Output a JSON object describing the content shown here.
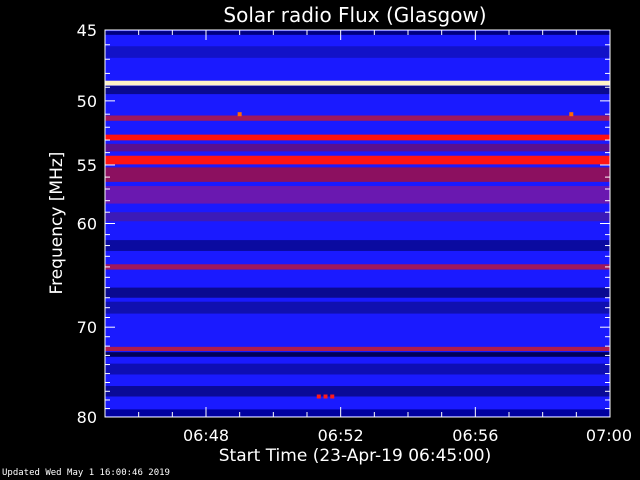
{
  "title": "Solar radio Flux (Glasgow)",
  "footer": "Updated Wed May  1 16:00:46 2019",
  "chart_data": {
    "type": "heatmap",
    "title": "Solar radio Flux (Glasgow)",
    "xlabel": "Start Time (23-Apr-19 06:45:00)",
    "ylabel": "Frequency [MHz]",
    "x_unit": "minutes after 06:45",
    "xlim": [
      0,
      15
    ],
    "ylim": [
      45,
      80
    ],
    "y_scale": "log",
    "y_inverted": true,
    "x_ticks": [
      {
        "value": 3,
        "label": "06:48"
      },
      {
        "value": 7,
        "label": "06:52"
      },
      {
        "value": 11,
        "label": "06:56"
      },
      {
        "value": 15,
        "label": "07:00"
      }
    ],
    "y_ticks": [
      {
        "value": 45,
        "label": "45"
      },
      {
        "value": 50,
        "label": "50"
      },
      {
        "value": 55,
        "label": "55"
      },
      {
        "value": 60,
        "label": "60"
      },
      {
        "value": 70,
        "label": "70"
      },
      {
        "value": 80,
        "label": "80"
      }
    ],
    "background_color": "#1a1aff",
    "bands": [
      {
        "freq": 45.2,
        "color": "#000080",
        "width": 0.25
      },
      {
        "freq": 46.5,
        "color": "#1212c8",
        "width": 0.8
      },
      {
        "freq": 48.7,
        "color": "#fff4c8",
        "width": 0.35
      },
      {
        "freq": 49.2,
        "color": "#0a0a90",
        "width": 0.6
      },
      {
        "freq": 51.3,
        "color": "#a0185c",
        "width": 0.4
      },
      {
        "freq": 52.8,
        "color": "#ff1010",
        "width": 0.45
      },
      {
        "freq": 53.6,
        "color": "#5a1090",
        "width": 0.6
      },
      {
        "freq": 54.6,
        "color": "#ff1414",
        "width": 0.7
      },
      {
        "freq": 55.8,
        "color": "#8c1060",
        "width": 1.2
      },
      {
        "freq": 57.5,
        "color": "#6a18b0",
        "width": 1.5
      },
      {
        "freq": 59.4,
        "color": "#3c1ab8",
        "width": 0.8
      },
      {
        "freq": 62.0,
        "color": "#0a0aa0",
        "width": 1.0
      },
      {
        "freq": 64.0,
        "color": "#a0185c",
        "width": 0.5
      },
      {
        "freq": 66.5,
        "color": "#0a0a90",
        "width": 1.0
      },
      {
        "freq": 68.0,
        "color": "#1010b0",
        "width": 1.2
      },
      {
        "freq": 72.3,
        "color": "#b01c4c",
        "width": 0.45
      },
      {
        "freq": 72.9,
        "color": "#00005a",
        "width": 0.5
      },
      {
        "freq": 74.5,
        "color": "#0e0eb4",
        "width": 1.2
      },
      {
        "freq": 77.0,
        "color": "#0a0a98",
        "width": 1.2
      },
      {
        "freq": 79.5,
        "color": "#0000a0",
        "width": 0.8
      }
    ],
    "spots": [
      {
        "x": 4.0,
        "freq": 51.0,
        "color": "#ff6a00"
      },
      {
        "x": 13.85,
        "freq": 51.0,
        "color": "#ff6a00"
      },
      {
        "x": 6.35,
        "freq": 77.6,
        "color": "#ff1a1a"
      },
      {
        "x": 6.55,
        "freq": 77.6,
        "color": "#ff1a1a"
      },
      {
        "x": 6.75,
        "freq": 77.6,
        "color": "#ff1a1a"
      }
    ]
  }
}
